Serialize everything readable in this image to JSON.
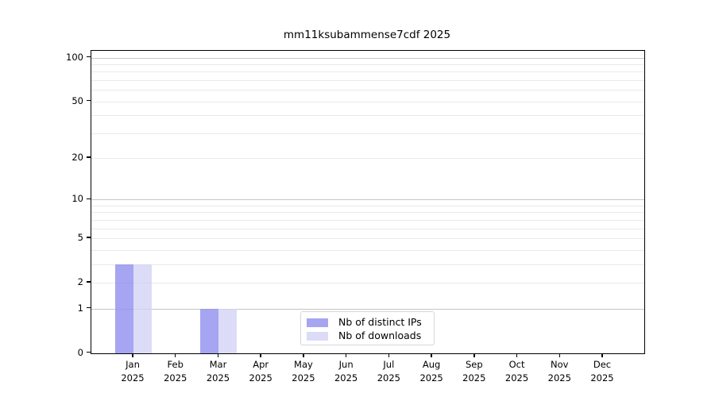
{
  "page": {
    "background": "#ffffff"
  },
  "chart_data": {
    "type": "bar",
    "title": "mm11ksubammense7cdf 2025",
    "categories": [
      "Jan",
      "Feb",
      "Mar",
      "Apr",
      "May",
      "Jun",
      "Jul",
      "Aug",
      "Sep",
      "Oct",
      "Nov",
      "Dec"
    ],
    "category_year": "2025",
    "series": [
      {
        "name": "Nb of distinct IPs",
        "color": "#a5a5f2",
        "values": [
          3,
          0,
          1,
          0,
          0,
          0,
          0,
          0,
          0,
          0,
          0,
          0
        ]
      },
      {
        "name": "Nb of downloads",
        "color": "#dcdcf8",
        "values": [
          3,
          0,
          1,
          0,
          0,
          0,
          0,
          0,
          0,
          0,
          0,
          0
        ]
      }
    ],
    "yscale": "log10(value+1)",
    "ylim": [
      0,
      110
    ],
    "y_tick_labels": [
      0,
      1,
      2,
      5,
      10,
      20,
      50,
      100
    ],
    "y_gridlines_minor": [
      2,
      3,
      4,
      5,
      6,
      7,
      8,
      9,
      20,
      30,
      40,
      50,
      60,
      70,
      80,
      90
    ],
    "y_gridlines_major": [
      1,
      10,
      100
    ],
    "grid": true,
    "legend_position": "lower center, inside plot",
    "colors": {
      "axis": "#000000",
      "bar_distinct_ips": "#a5a5f2",
      "bar_downloads": "#dcdcf8",
      "legend_border": "#d7d7d7",
      "background": "#ffffff"
    }
  }
}
